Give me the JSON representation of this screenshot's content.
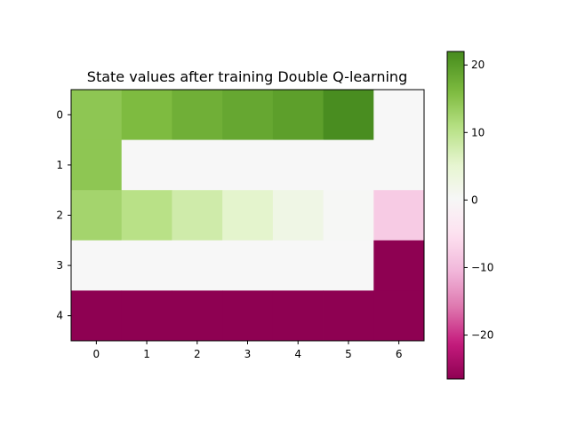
{
  "chart_data": {
    "type": "heatmap",
    "title": "State values after training Double Q-learning",
    "xlabel": "",
    "ylabel": "",
    "x_ticks": [
      "0",
      "1",
      "2",
      "3",
      "4",
      "5",
      "6"
    ],
    "y_ticks": [
      "0",
      "1",
      "2",
      "3",
      "4"
    ],
    "values": [
      [
        14.5,
        16.0,
        17.5,
        18.5,
        19.5,
        21.8,
        0.0
      ],
      [
        14.5,
        0.0,
        0.0,
        0.0,
        0.0,
        0.0,
        0.0
      ],
      [
        12.5,
        10.5,
        8.0,
        5.5,
        2.5,
        0.3,
        -8.0
      ],
      [
        0.0,
        0.0,
        0.0,
        0.0,
        0.0,
        0.0,
        -26.5
      ],
      [
        -26.5,
        -26.5,
        -26.5,
        -26.5,
        -26.5,
        -26.5,
        -26.5
      ]
    ],
    "colormap": "PiYG",
    "colorbar": {
      "vmin": -26.5,
      "vmax": 22,
      "ticks": [
        -20,
        -10,
        0,
        10,
        20
      ],
      "tick_labels": [
        "−20",
        "−10",
        "0",
        "10",
        "20"
      ]
    },
    "grid": false
  }
}
